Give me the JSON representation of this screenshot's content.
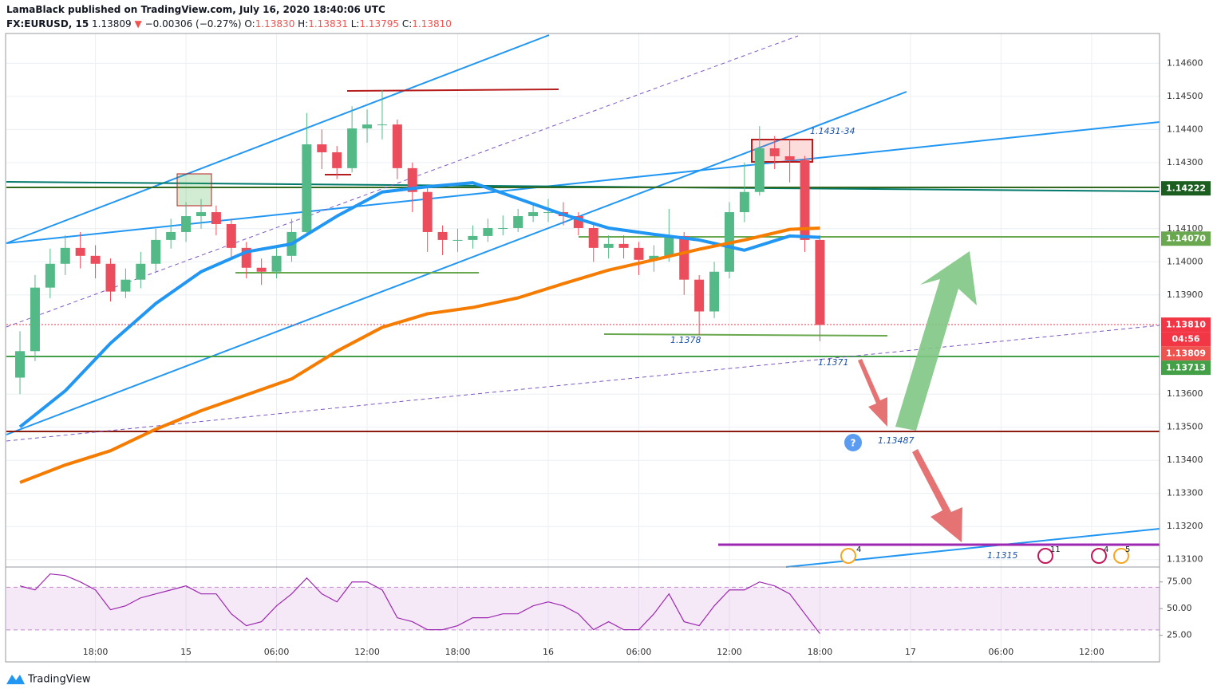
{
  "header": {
    "publisher": "LamaBlack published on TradingView.com, July 16, 2020 18:40:06 UTC",
    "symbol": "FX:EURUSD, 15",
    "last": "1.13809",
    "arrow": "▼",
    "change": "−0.00306 (−0.27%)",
    "o_label": "O:",
    "o": "1.13830",
    "h_label": "H:",
    "h": "1.13831",
    "l_label": "L:",
    "l": "1.13795",
    "c_label": "C:",
    "c": "1.13810"
  },
  "chart_data": {
    "type": "candlestick",
    "x": [
      13,
      14,
      15,
      16,
      17,
      18,
      19,
      20,
      21,
      22,
      23,
      24,
      25,
      26,
      27,
      28,
      29,
      30,
      31,
      32,
      33,
      34,
      35,
      36,
      37,
      38,
      39,
      40,
      41,
      42,
      43,
      44,
      45,
      46,
      47,
      48,
      49,
      50,
      51,
      52,
      53,
      54,
      55,
      56,
      57,
      58,
      59,
      60,
      61,
      62,
      63,
      64,
      65,
      66
    ],
    "open": [
      1.1365,
      1.1373,
      1.13922,
      1.13994,
      1.14042,
      1.14018,
      1.13994,
      1.1391,
      1.13946,
      1.13994,
      1.14066,
      1.1409,
      1.14138,
      1.1415,
      1.14114,
      1.14042,
      1.13982,
      1.1397,
      1.14018,
      1.1409,
      1.14355,
      1.14331,
      1.14283,
      1.14403,
      1.14415,
      1.14415,
      1.14283,
      1.14211,
      1.1409,
      1.14066,
      1.14066,
      1.14078,
      1.14102,
      1.14102,
      1.14138,
      1.1415,
      1.1415,
      1.14138,
      1.14102,
      1.14042,
      1.14054,
      1.14042,
      1.14006,
      1.14018,
      1.14078,
      1.13946,
      1.1385,
      1.1397,
      1.1415,
      1.14211,
      1.14343,
      1.14319,
      1.14307,
      1.14066
    ],
    "high": [
      1.1379,
      1.1396,
      1.1404,
      1.1408,
      1.1409,
      1.1405,
      1.1401,
      1.1398,
      1.1403,
      1.141,
      1.1413,
      1.1418,
      1.1419,
      1.1417,
      1.1413,
      1.1406,
      1.1401,
      1.1405,
      1.1413,
      1.1445,
      1.144,
      1.1435,
      1.1447,
      1.1446,
      1.1452,
      1.1443,
      1.143,
      1.1423,
      1.1411,
      1.141,
      1.1411,
      1.1413,
      1.1414,
      1.1416,
      1.1418,
      1.1419,
      1.1418,
      1.1415,
      1.1412,
      1.1408,
      1.1408,
      1.1406,
      1.1405,
      1.1416,
      1.1409,
      1.1396,
      1.14,
      1.1418,
      1.143,
      1.1441,
      1.1438,
      1.1437,
      1.1432,
      1.1408
    ],
    "low": [
      1.136,
      1.137,
      1.1389,
      1.1396,
      1.1398,
      1.1395,
      1.1388,
      1.1389,
      1.1392,
      1.1397,
      1.1404,
      1.1406,
      1.141,
      1.1408,
      1.1401,
      1.1395,
      1.1393,
      1.1395,
      1.14,
      1.1408,
      1.1428,
      1.1425,
      1.1427,
      1.1436,
      1.1437,
      1.1425,
      1.1415,
      1.1403,
      1.1402,
      1.1403,
      1.1404,
      1.1406,
      1.1408,
      1.1409,
      1.1412,
      1.1412,
      1.1411,
      1.1408,
      1.14,
      1.1401,
      1.1401,
      1.1396,
      1.1397,
      1.14,
      1.139,
      1.1378,
      1.1383,
      1.1395,
      1.1412,
      1.142,
      1.1428,
      1.1424,
      1.1403,
      1.1376
    ],
    "close": [
      1.1373,
      1.13922,
      1.13994,
      1.14042,
      1.14018,
      1.13994,
      1.1391,
      1.13946,
      1.13994,
      1.14066,
      1.1409,
      1.14138,
      1.1415,
      1.14114,
      1.14042,
      1.13982,
      1.1397,
      1.14018,
      1.1409,
      1.14355,
      1.14331,
      1.14283,
      1.14403,
      1.14415,
      1.14415,
      1.14283,
      1.14211,
      1.1409,
      1.14066,
      1.14066,
      1.14078,
      1.14102,
      1.14102,
      1.14138,
      1.1415,
      1.1415,
      1.14138,
      1.14102,
      1.14042,
      1.14054,
      1.14042,
      1.14006,
      1.14018,
      1.14078,
      1.13946,
      1.1385,
      1.1397,
      1.1415,
      1.14211,
      1.14343,
      1.14319,
      1.14307,
      1.14066,
      1.13809
    ],
    "up_color": "#53b987",
    "down_color": "#eb4d5c",
    "xlim": [
      12.1,
      88.5
    ],
    "xticks": [
      {
        "value": 18,
        "label": "18:00"
      },
      {
        "value": 24,
        "label": "15"
      },
      {
        "value": 30,
        "label": "06:00"
      },
      {
        "value": 36,
        "label": "12:00"
      },
      {
        "value": 42,
        "label": "18:00"
      },
      {
        "value": 48,
        "label": "16"
      },
      {
        "value": 54,
        "label": "06:00"
      },
      {
        "value": 60,
        "label": "12:00"
      },
      {
        "value": 66,
        "label": "18:00"
      },
      {
        "value": 72,
        "label": "17"
      },
      {
        "value": 78,
        "label": "06:00"
      },
      {
        "value": 84,
        "label": "12:00"
      }
    ],
    "ylim": [
      1.1308,
      1.1469
    ],
    "yticks": [
      {
        "value": 1.131,
        "label": "1.13100"
      },
      {
        "value": 1.132,
        "label": "1.13200"
      },
      {
        "value": 1.133,
        "label": "1.13300"
      },
      {
        "value": 1.134,
        "label": "1.13400"
      },
      {
        "value": 1.135,
        "label": "1.13500"
      },
      {
        "value": 1.136,
        "label": "1.13600"
      },
      {
        "value": 1.139,
        "label": "1.13900"
      },
      {
        "value": 1.14,
        "label": "1.14000"
      },
      {
        "value": 1.141,
        "label": "1.14100"
      },
      {
        "value": 1.143,
        "label": "1.14300"
      },
      {
        "value": 1.144,
        "label": "1.14400"
      },
      {
        "value": 1.145,
        "label": "1.14500"
      },
      {
        "value": 1.146,
        "label": "1.14600"
      }
    ],
    "grid": true,
    "moving_averages": [
      {
        "color": "#2196f3",
        "x": [
          13,
          16,
          19,
          22,
          25,
          28,
          31,
          34,
          37,
          40,
          43,
          46,
          49,
          52,
          55,
          58,
          61,
          64,
          66
        ],
        "values": [
          1.13501,
          1.1361,
          1.13754,
          1.13874,
          1.1397,
          1.1403,
          1.14054,
          1.14138,
          1.14211,
          1.14227,
          1.14239,
          1.14191,
          1.14143,
          1.14102,
          1.14083,
          1.14066,
          1.14035,
          1.14078,
          1.14074
        ]
      },
      {
        "color": "#f57c00",
        "x": [
          13,
          16,
          19,
          22,
          25,
          28,
          31,
          34,
          37,
          40,
          43,
          46,
          49,
          52,
          55,
          58,
          61,
          64,
          66
        ],
        "values": [
          1.13333,
          1.13386,
          1.13429,
          1.13494,
          1.1355,
          1.13598,
          1.13646,
          1.1373,
          1.13802,
          1.13843,
          1.13862,
          1.13891,
          1.13934,
          1.13975,
          1.14006,
          1.14038,
          1.14066,
          1.14098,
          1.14102
        ]
      }
    ],
    "price_labels": [
      {
        "value": 1.14222,
        "label": "1.14222",
        "color": "#1b5e20"
      },
      {
        "value": 1.1407,
        "label": "1.14070",
        "color": "#6aa84f"
      },
      {
        "value": 1.1381,
        "label": "1.13810",
        "color": "#f23645"
      },
      {
        "value": 1.13809,
        "label": "1.13809",
        "color": "#ef5350"
      },
      {
        "value": 1.13713,
        "label": "1.13713",
        "color": "#43a047"
      }
    ],
    "countdown": "04:56",
    "annotations": [
      "1.1431-34",
      "1.1378",
      "1.1371",
      "1.13487",
      "1.1315"
    ],
    "events": [
      "4",
      "11",
      "4",
      "5"
    ],
    "rsi": {
      "x": [
        13,
        14,
        15,
        16,
        17,
        18,
        19,
        20,
        21,
        22,
        23,
        24,
        25,
        26,
        27,
        28,
        29,
        30,
        31,
        32,
        33,
        34,
        35,
        36,
        37,
        38,
        39,
        40,
        41,
        42,
        43,
        44,
        45,
        46,
        47,
        48,
        49,
        50,
        51,
        52,
        53,
        54,
        55,
        56,
        57,
        58,
        59,
        60,
        61,
        62,
        63,
        64,
        65,
        66
      ],
      "values": [
        71.3,
        67.5,
        82.5,
        81,
        75,
        67.5,
        48.9,
        52.6,
        60.1,
        63.8,
        67.5,
        71.3,
        63.8,
        63.8,
        45.1,
        34,
        37.7,
        52.6,
        63.8,
        78.7,
        63.8,
        56.3,
        75,
        75,
        67.5,
        41.4,
        37.7,
        30.2,
        30.2,
        34,
        41.4,
        41.4,
        45.1,
        45.1,
        52.6,
        56.3,
        52.6,
        45.1,
        30.2,
        37.7,
        30.2,
        30.2,
        45.1,
        63.8,
        37.7,
        34,
        52.6,
        67.5,
        67.5,
        75,
        71.3,
        63.8,
        45.1,
        26.5
      ],
      "ylim": [
        0,
        89
      ],
      "yticks": [
        {
          "value": 25,
          "label": "25.00"
        },
        {
          "value": 50,
          "label": "50.00"
        },
        {
          "value": 75,
          "label": "75.00"
        }
      ],
      "band": [
        30,
        70
      ],
      "color": "#9c27b0"
    }
  },
  "footer": {
    "brand": "TradingView"
  }
}
